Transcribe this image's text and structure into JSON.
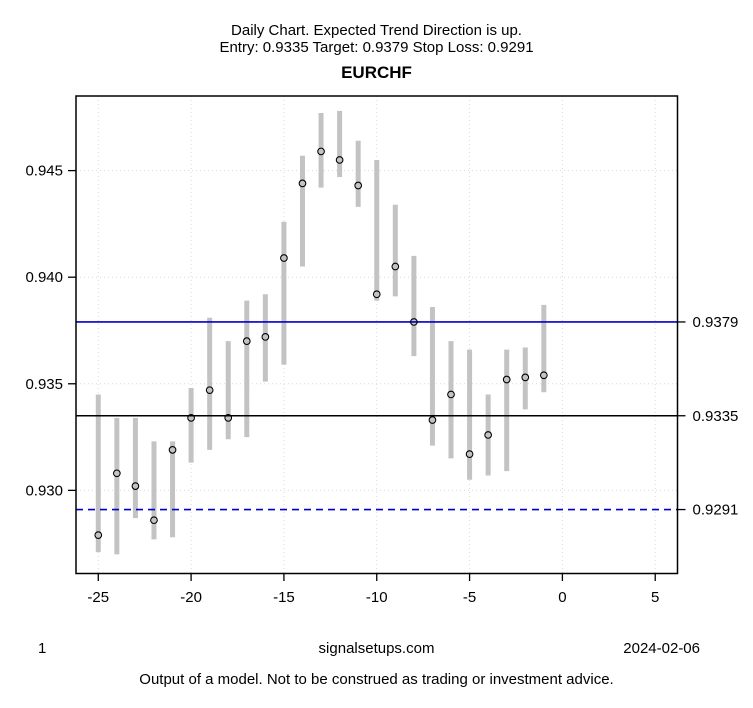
{
  "header": {
    "line1": "Daily Chart. Expected Trend Direction is up.",
    "line2": "Entry: 0.9335 Target: 0.9379 Stop Loss: 0.9291"
  },
  "chart_data": {
    "type": "bar",
    "subtype": "high-low-range-with-points",
    "title": "EURCHF",
    "xlabel": "",
    "ylabel": "",
    "grid": true,
    "xlim": [
      -26.2,
      6.2
    ],
    "ylim": [
      0.9261,
      0.9485
    ],
    "x_ticks": [
      -25,
      -20,
      -15,
      -10,
      -5,
      0,
      5
    ],
    "y_ticks": [
      {
        "value": 0.93,
        "label": "0.930"
      },
      {
        "value": 0.935,
        "label": "0.935"
      },
      {
        "value": 0.94,
        "label": "0.940"
      },
      {
        "value": 0.945,
        "label": "0.945"
      }
    ],
    "x": [
      -25,
      -24,
      -23,
      -22,
      -21,
      -20,
      -19,
      -18,
      -17,
      -16,
      -15,
      -14,
      -13,
      -12,
      -11,
      -10,
      -9,
      -8,
      -7,
      -6,
      -5,
      -4,
      -3,
      -2,
      -1
    ],
    "series": [
      {
        "name": "high",
        "values": [
          0.9345,
          0.9334,
          0.9334,
          0.9323,
          0.9323,
          0.9348,
          0.9381,
          0.937,
          0.9389,
          0.9392,
          0.9426,
          0.9457,
          0.9477,
          0.9478,
          0.9464,
          0.9455,
          0.9434,
          0.941,
          0.9386,
          0.937,
          0.9366,
          0.9345,
          0.9366,
          0.9367,
          0.9387
        ]
      },
      {
        "name": "low",
        "values": [
          0.9271,
          0.927,
          0.9287,
          0.9277,
          0.9278,
          0.9313,
          0.9319,
          0.9324,
          0.9325,
          0.9351,
          0.9359,
          0.9405,
          0.9442,
          0.9447,
          0.9433,
          0.9389,
          0.9391,
          0.9363,
          0.9321,
          0.9315,
          0.9305,
          0.9307,
          0.9309,
          0.9338,
          0.9346
        ]
      },
      {
        "name": "point",
        "values": [
          0.9279,
          0.9308,
          0.9302,
          0.9286,
          0.9319,
          0.9334,
          0.9347,
          0.9334,
          0.937,
          0.9372,
          0.9409,
          0.9444,
          0.9459,
          0.9455,
          0.9443,
          0.9392,
          0.9405,
          0.9379,
          0.9333,
          0.9345,
          0.9317,
          0.9326,
          0.9352,
          0.9353,
          0.9354
        ]
      }
    ],
    "levels": [
      {
        "name": "target",
        "label": "0.9379",
        "value": 0.9379,
        "line_style": "solid",
        "color": "#0000CC"
      },
      {
        "name": "entry",
        "label": "0.9335",
        "value": 0.9335,
        "line_style": "solid",
        "color": "#000000"
      },
      {
        "name": "stop_loss",
        "label": "0.9291",
        "value": 0.9291,
        "line_style": "dashed",
        "color": "#0000CC"
      }
    ],
    "legend": "none"
  },
  "colors": {
    "bar": "#C3C3C3",
    "grid": "#D9D9D9",
    "axis": "#000000",
    "point_stroke": "#000000",
    "target_line": "#0000CC",
    "entry_line": "#000000",
    "stop_line": "#0000CC"
  },
  "footer": {
    "page": "1",
    "site": "signalsetups.com",
    "date": "2024-02-06",
    "disclaimer": "Output of a model. Not to be construed as trading or investment advice."
  }
}
